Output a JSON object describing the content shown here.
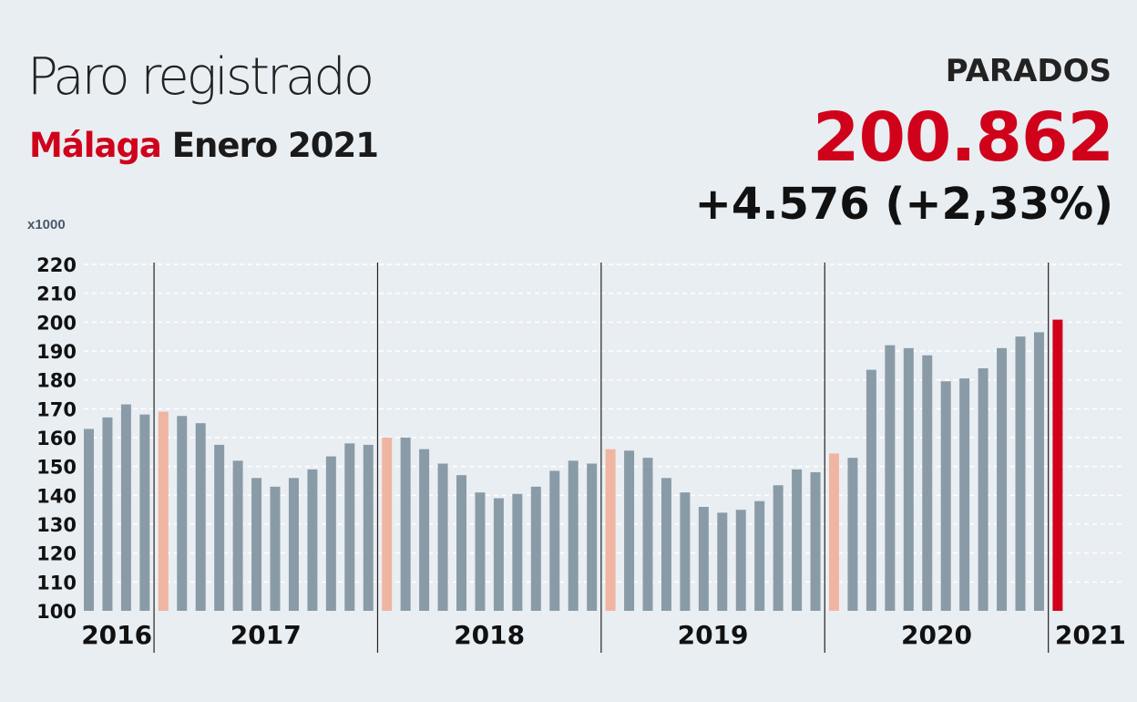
{
  "header": {
    "title": "Paro registrado",
    "place": "Málaga",
    "period": "Enero 2021",
    "stat_label": "PARADOS",
    "stat_value": "200.862",
    "stat_change": "+4.576 (+2,33%)",
    "unit": "x1000"
  },
  "colors": {
    "bar": "#8a9ba8",
    "january": "#f0b5a0",
    "current": "#d0021b",
    "grid": "#ffffff",
    "divider": "#222222"
  },
  "chart_data": {
    "type": "bar",
    "ylim": [
      100,
      220
    ],
    "yticks": [
      100,
      110,
      120,
      130,
      140,
      150,
      160,
      170,
      180,
      190,
      200,
      210,
      220
    ],
    "grid": true,
    "years": [
      {
        "label": "2016",
        "values": [
          163,
          167,
          171.5,
          168
        ]
      },
      {
        "label": "2017",
        "values": [
          169,
          167.5,
          165,
          157.5,
          152,
          146,
          143,
          146,
          149,
          153.5,
          158,
          157.5
        ]
      },
      {
        "label": "2018",
        "values": [
          160,
          160,
          156,
          151,
          147,
          141,
          139,
          140.5,
          143,
          148.5,
          152,
          151
        ]
      },
      {
        "label": "2019",
        "values": [
          156,
          155.5,
          153,
          146,
          141,
          136,
          134,
          135,
          138,
          143.5,
          149,
          148
        ]
      },
      {
        "label": "2020",
        "values": [
          154.5,
          153,
          183.5,
          192,
          191,
          188.5,
          179.5,
          180.5,
          184,
          191,
          195,
          196.5
        ]
      },
      {
        "label": "2021",
        "values": [
          200.862
        ]
      }
    ],
    "january_highlight": true,
    "last_highlight": true
  }
}
